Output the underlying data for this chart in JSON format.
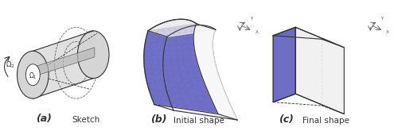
{
  "fig_width": 5.0,
  "fig_height": 1.7,
  "dpi": 100,
  "bg_color": "#ffffff",
  "panel_labels": [
    "(a)",
    "(b)",
    "(c)"
  ],
  "panel_subtitles": [
    "Sketch",
    "Initial shape",
    "Final shape"
  ],
  "panel_label_fontsize": 9,
  "panel_subtitle_fontsize": 7.5,
  "blue_fill": "#5555bb",
  "blue_fill_alpha": 0.85,
  "gray_fill": "#cccccc",
  "gray_fill_alpha": 0.5,
  "line_color": "#333333",
  "line_width": 0.8
}
